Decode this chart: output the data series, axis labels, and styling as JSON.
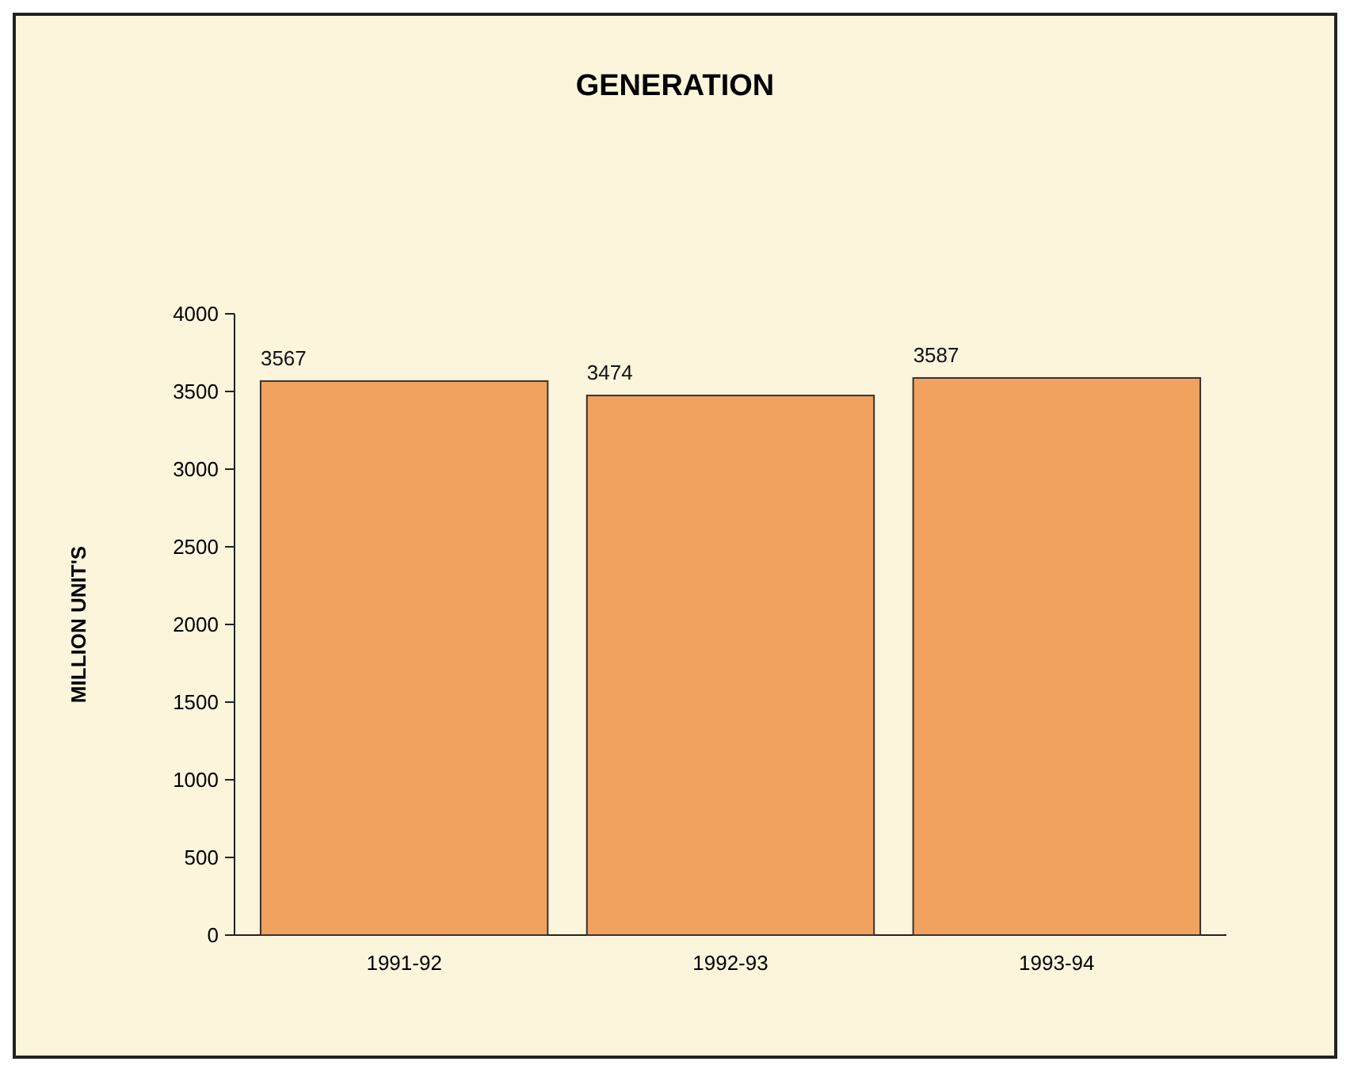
{
  "chart_data": {
    "type": "bar",
    "title": "GENERATION",
    "ylabel": "MILLION UNIT'S",
    "categories": [
      "1991-92",
      "1992-93",
      "1993-94"
    ],
    "values": [
      3567,
      3474,
      3587
    ],
    "color": "#f2a25f",
    "ylim": [
      0,
      4000
    ],
    "yticks": [
      0,
      500,
      1000,
      1500,
      2000,
      2500,
      3000,
      3500,
      4000
    ],
    "data_labels": true
  }
}
